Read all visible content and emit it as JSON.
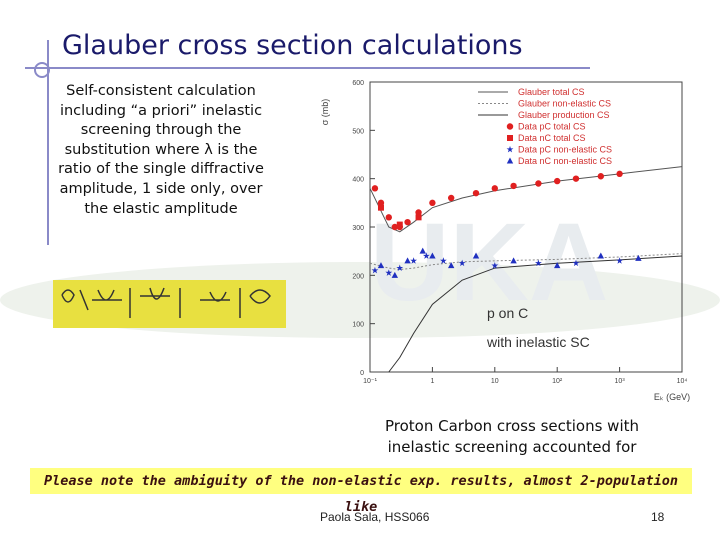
{
  "title": "Glauber cross section calculations",
  "description": "Self-consistent calculation including “a priori” inelastic screening through the substitution where λ is the ratio of the single diffractive amplitude, 1 side only, over the elastic amplitude",
  "chart_data": {
    "type": "scatter",
    "xlabel": "Eₖ (GeV)",
    "ylabel": "σ (mb)",
    "xscale": "log",
    "xlim": [
      0.1,
      10000
    ],
    "ylim": [
      0,
      600
    ],
    "xticks": [
      {
        "value": 0.1,
        "label": "10⁻¹"
      },
      1,
      10,
      {
        "value": 100,
        "label": "10²"
      },
      {
        "value": 1000,
        "label": "10³"
      },
      {
        "value": 10000,
        "label": "10⁴"
      }
    ],
    "yticks": [
      0,
      100,
      200,
      300,
      400,
      500,
      600
    ],
    "annotations": [
      "p on C",
      "with inelastic SC"
    ],
    "series": [
      {
        "name": "Glauber total CS",
        "color": "#555555",
        "style": "line",
        "x": [
          0.1,
          0.2,
          0.3,
          0.5,
          1,
          3,
          10,
          100,
          1000,
          10000
        ],
        "values": [
          380,
          300,
          290,
          310,
          340,
          360,
          375,
          395,
          410,
          425
        ]
      },
      {
        "name": "Glauber non-elastic CS",
        "color": "#888888",
        "style": "line",
        "x": [
          0.1,
          0.2,
          0.3,
          0.5,
          1,
          3,
          10,
          100,
          1000,
          10000
        ],
        "values": [
          225,
          215,
          212,
          215,
          222,
          228,
          230,
          233,
          238,
          245
        ]
      },
      {
        "name": "Glauber production CS",
        "color": "#333333",
        "style": "line",
        "x": [
          0.2,
          0.3,
          0.5,
          1,
          3,
          10,
          100,
          1000,
          10000
        ],
        "values": [
          0,
          30,
          80,
          140,
          190,
          215,
          225,
          232,
          240
        ]
      },
      {
        "name": "Data pC total CS",
        "color": "#e02020",
        "style": "circle",
        "x": [
          0.12,
          0.15,
          0.2,
          0.25,
          0.3,
          0.4,
          0.6,
          1,
          2,
          5,
          10,
          20,
          50,
          100,
          200,
          500,
          1000
        ],
        "values": [
          380,
          350,
          320,
          300,
          300,
          310,
          330,
          350,
          360,
          370,
          380,
          385,
          390,
          395,
          400,
          405,
          410
        ]
      },
      {
        "name": "Data nC total CS",
        "color": "#e02020",
        "style": "square",
        "x": [
          0.15,
          0.3,
          0.6
        ],
        "values": [
          340,
          305,
          320
        ]
      },
      {
        "name": "Data pC non-elastic CS",
        "color": "#2030c0",
        "style": "star",
        "x": [
          0.12,
          0.2,
          0.3,
          0.5,
          0.8,
          1.5,
          3,
          10,
          50,
          200,
          1000
        ],
        "values": [
          210,
          205,
          215,
          230,
          240,
          230,
          225,
          220,
          225,
          225,
          230
        ]
      },
      {
        "name": "Data nC non-elastic CS",
        "color": "#2030c0",
        "style": "triangle",
        "x": [
          0.15,
          0.25,
          0.4,
          0.7,
          1,
          2,
          5,
          20,
          100,
          500,
          2000
        ],
        "values": [
          220,
          200,
          230,
          250,
          240,
          220,
          240,
          230,
          220,
          240,
          235
        ]
      }
    ]
  },
  "caption": "Proton Carbon cross sections with inelastic screening accounted for",
  "note": "Please note the ambiguity of the non-elastic exp. results, almost 2-population like",
  "footer": {
    "author": "Paola Sala, HSS066",
    "page": "18"
  }
}
